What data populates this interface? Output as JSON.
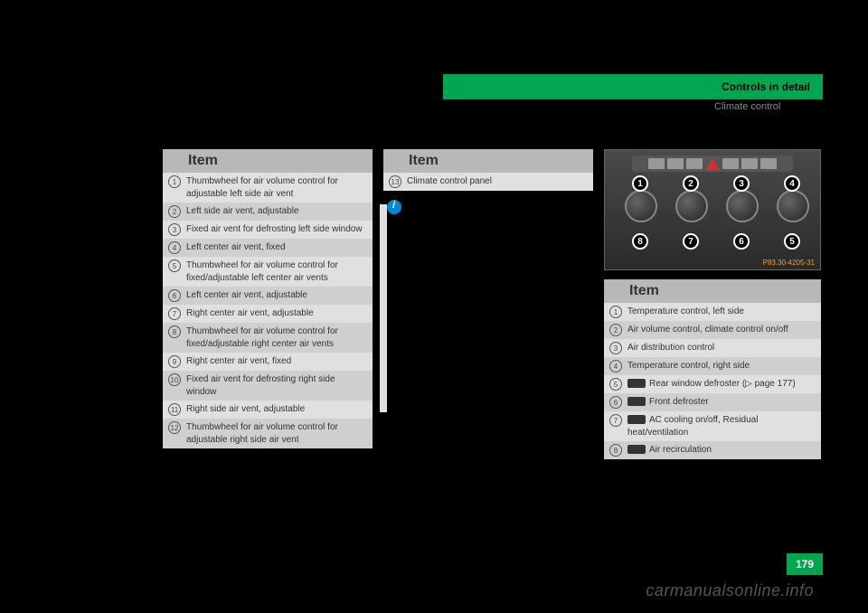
{
  "header": {
    "title": "Controls in detail",
    "sub": "Climate control"
  },
  "page_number": "179",
  "watermark": "carmanualsonline.info",
  "image": {
    "label": "P83.30-4205-31",
    "callouts_top": [
      "1",
      "2",
      "3",
      "4"
    ],
    "callouts_bottom": [
      "8",
      "7",
      "6",
      "5"
    ]
  },
  "table1": {
    "header": "Item",
    "rows": [
      {
        "n": "1",
        "t": "Thumbwheel for air volume control for adjustable left side air vent"
      },
      {
        "n": "2",
        "t": "Left side air vent, adjustable"
      },
      {
        "n": "3",
        "t": "Fixed air vent for defrosting left side window"
      },
      {
        "n": "4",
        "t": "Left center air vent, fixed"
      },
      {
        "n": "5",
        "t": "Thumbwheel for air volume control for fixed/adjustable left center air vents"
      },
      {
        "n": "6",
        "t": "Left center air vent, adjustable"
      },
      {
        "n": "7",
        "t": "Right center air vent, adjustable"
      },
      {
        "n": "8",
        "t": "Thumbwheel for air volume control for fixed/adjustable right center air vents"
      },
      {
        "n": "9",
        "t": "Right center air vent, fixed"
      },
      {
        "n": "10",
        "t": "Fixed air vent for defrosting right side window"
      },
      {
        "n": "11",
        "t": "Right side air vent, adjustable"
      },
      {
        "n": "12",
        "t": "Thumbwheel for air volume control for adjustable right side air vent"
      }
    ]
  },
  "table2": {
    "header": "Item",
    "rows": [
      {
        "n": "13",
        "t": "Climate control panel"
      }
    ]
  },
  "table3": {
    "header": "Item",
    "rows": [
      {
        "n": "1",
        "t": "Temperature control, left side",
        "icon": false
      },
      {
        "n": "2",
        "t": "Air volume control, climate control on/off",
        "icon": false
      },
      {
        "n": "3",
        "t": "Air distribution control",
        "icon": false
      },
      {
        "n": "4",
        "t": "Temperature control, right side",
        "icon": false
      },
      {
        "n": "5",
        "t": "Rear window defroster (▷ page 177)",
        "icon": true
      },
      {
        "n": "6",
        "t": "Front defroster",
        "icon": true
      },
      {
        "n": "7",
        "t": "AC cooling on/off, Residual heat/ventilation",
        "icon": true
      },
      {
        "n": "8",
        "t": "Air recirculation",
        "icon": true
      }
    ]
  },
  "colors": {
    "accent": "#00a64f",
    "blue": "#0088d4",
    "orange": "#e8a030"
  }
}
